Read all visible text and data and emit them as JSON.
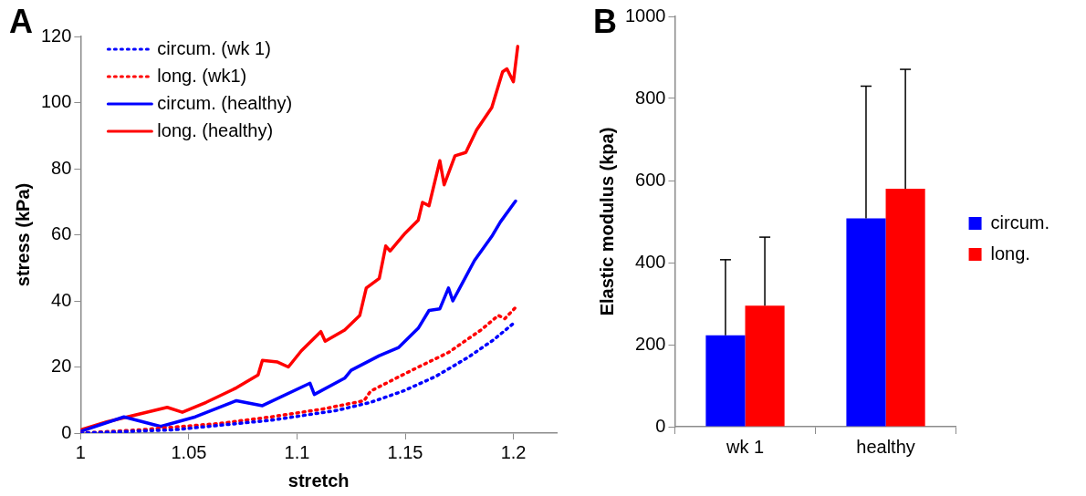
{
  "chart_data": [
    {
      "type": "line",
      "title": "A",
      "xlabel": "stretch",
      "ylabel": "stress (kPa)",
      "xlim": [
        1,
        1.22
      ],
      "xticks": [
        1,
        1.05,
        1.1,
        1.15,
        1.2
      ],
      "ylim": [
        0,
        120
      ],
      "yticks": [
        0,
        20,
        40,
        60,
        80,
        100,
        120
      ],
      "grid": false,
      "legend": "top left",
      "marker": "none",
      "series": [
        {
          "name": "circum. (wk 1)",
          "color": "#0000ff",
          "line_style": "dotted",
          "x": [
            1,
            1.043,
            1.088,
            1.118,
            1.134,
            1.149,
            1.164,
            1.179,
            1.191,
            1.2
          ],
          "values": [
            0,
            1,
            3.9,
            6.8,
            9.3,
            12.7,
            17.1,
            22.9,
            28.3,
            33.2
          ]
        },
        {
          "name": "long. (wk1)",
          "color": "#ff0000",
          "line_style": "dotted",
          "x": [
            1,
            1.028,
            1.064,
            1.088,
            1.112,
            1.131,
            1.134,
            1.153,
            1.17,
            1.185,
            1.193,
            1.196,
            1.201
          ],
          "values": [
            0,
            1,
            2.9,
            4.9,
            7.3,
            9.8,
            12.7,
            19,
            24.4,
            31.2,
            35.6,
            34.6,
            38
          ]
        },
        {
          "name": "circum. (healthy)",
          "color": "#0000ff",
          "line_style": "solid",
          "x": [
            1,
            1.02,
            1.037,
            1.053,
            1.072,
            1.084,
            1.106,
            1.108,
            1.122,
            1.125,
            1.138,
            1.147,
            1.156,
            1.161,
            1.166,
            1.17,
            1.172,
            1.182,
            1.19,
            1.194,
            1.201
          ],
          "values": [
            0.5,
            4.9,
            2,
            4.9,
            9.8,
            8.3,
            15.1,
            11.7,
            16.6,
            19,
            23.4,
            25.9,
            31.7,
            37.1,
            37.6,
            43.9,
            40,
            52.2,
            59.5,
            63.9,
            70.2
          ]
        },
        {
          "name": "long. (healthy)",
          "color": "#ff0000",
          "line_style": "solid",
          "x": [
            1,
            1.012,
            1.04,
            1.047,
            1.058,
            1.072,
            1.082,
            1.084,
            1.091,
            1.096,
            1.102,
            1.111,
            1.113,
            1.122,
            1.129,
            1.132,
            1.138,
            1.141,
            1.143,
            1.15,
            1.156,
            1.158,
            1.161,
            1.166,
            1.168,
            1.173,
            1.178,
            1.183,
            1.19,
            1.195,
            1.197,
            1.2,
            1.202
          ],
          "values": [
            1,
            3.4,
            7.8,
            6.3,
            9.3,
            13.7,
            17.6,
            22,
            21.5,
            20,
            24.9,
            30.7,
            27.8,
            31.2,
            35.6,
            43.9,
            46.8,
            56.6,
            55.1,
            60.5,
            64.4,
            69.8,
            68.8,
            82.4,
            75.1,
            83.9,
            84.9,
            91.7,
            98.5,
            109.3,
            110.2,
            106.3,
            117
          ]
        }
      ]
    },
    {
      "type": "bar",
      "title": "B",
      "ylabel": "Elastic modulus (kpa)",
      "categories": [
        "wk 1",
        "healthy"
      ],
      "ylim": [
        0,
        1000
      ],
      "yticks": [
        0,
        200,
        400,
        600,
        800,
        1000
      ],
      "grid": false,
      "legend": "right",
      "series": [
        {
          "name": "circum.",
          "color": "#0000ff",
          "values": [
            223,
            508
          ],
          "errors": [
            [
              223,
              407
            ],
            [
              508,
              830
            ]
          ]
        },
        {
          "name": "long.",
          "color": "#ff0000",
          "values": [
            295,
            580
          ],
          "errors": [
            [
              295,
              462
            ],
            [
              580,
              871
            ]
          ]
        }
      ]
    }
  ]
}
